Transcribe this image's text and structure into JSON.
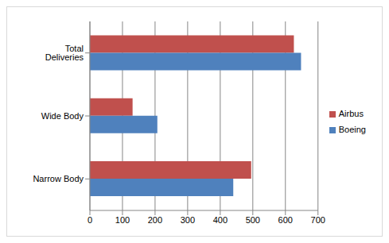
{
  "chart_data": {
    "type": "bar",
    "orientation": "horizontal",
    "categories": [
      "Total Deliveries",
      "Wide Body",
      "Narrow Body"
    ],
    "series": [
      {
        "name": "Airbus",
        "color": "#c0504d",
        "values": [
          626,
          131,
          495
        ]
      },
      {
        "name": "Boeing",
        "color": "#4f81bd",
        "values": [
          648,
          207,
          440
        ]
      }
    ],
    "xlim": [
      0,
      700
    ],
    "xticks": [
      0,
      100,
      200,
      300,
      400,
      500,
      600,
      700
    ],
    "grid": true,
    "legend": "right"
  }
}
